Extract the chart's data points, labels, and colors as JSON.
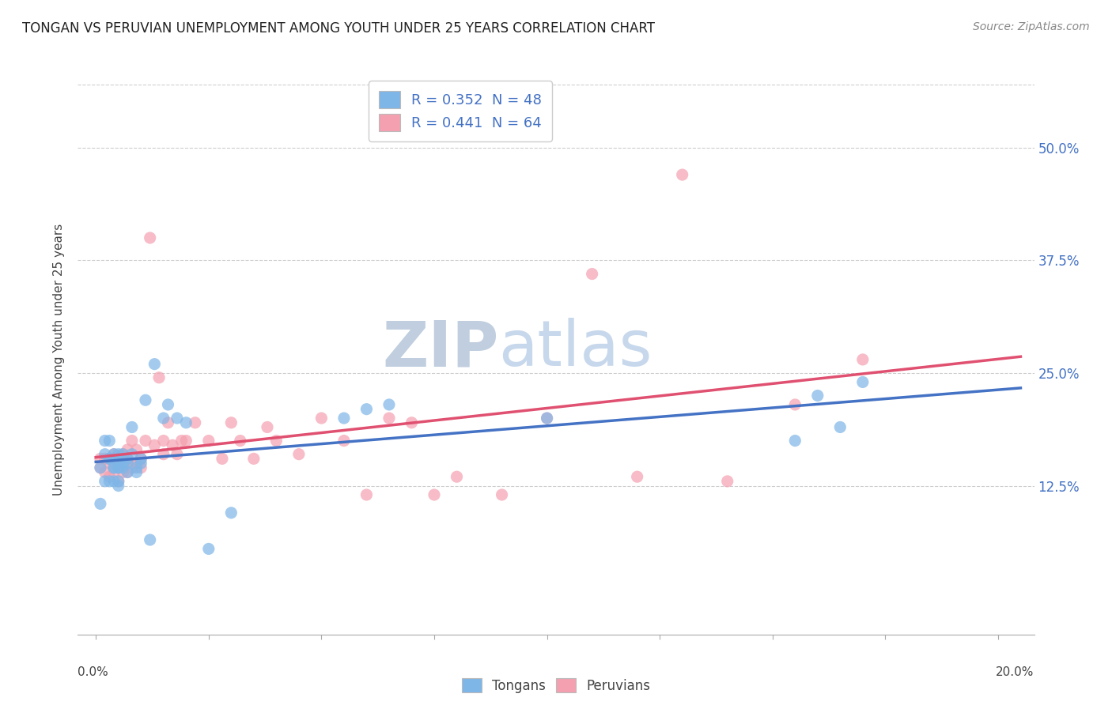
{
  "title": "TONGAN VS PERUVIAN UNEMPLOYMENT AMONG YOUTH UNDER 25 YEARS CORRELATION CHART",
  "source": "Source: ZipAtlas.com",
  "ylabel": "Unemployment Among Youth under 25 years",
  "xlabel_ticks": [
    "0.0%",
    "",
    "",
    "",
    "",
    "",
    "",
    "",
    "",
    "20.0%"
  ],
  "xlabel_vals": [
    0.0,
    0.025,
    0.05,
    0.075,
    0.1,
    0.125,
    0.15,
    0.175,
    0.19,
    0.2
  ],
  "ylabel_ticks": [
    "12.5%",
    "25.0%",
    "37.5%",
    "50.0%"
  ],
  "ylabel_vals": [
    0.125,
    0.25,
    0.375,
    0.5
  ],
  "ylim": [
    -0.04,
    0.57
  ],
  "xlim": [
    -0.004,
    0.208
  ],
  "R_tongan": 0.352,
  "N_tongan": 48,
  "R_peruvian": 0.441,
  "N_peruvian": 64,
  "tongan_color": "#7EB6E8",
  "peruvian_color": "#F4A0B0",
  "tongan_line_color": "#4472C4",
  "peruvian_line_color": "#E05070",
  "bg_color": "#FFFFFF",
  "watermark_zip": "ZIP",
  "watermark_atlas": "atlas",
  "watermark_color": "#C8D8EC",
  "tongan_x": [
    0.001,
    0.001,
    0.002,
    0.002,
    0.002,
    0.003,
    0.003,
    0.003,
    0.003,
    0.004,
    0.004,
    0.004,
    0.004,
    0.005,
    0.005,
    0.005,
    0.005,
    0.005,
    0.005,
    0.006,
    0.006,
    0.006,
    0.007,
    0.007,
    0.007,
    0.008,
    0.008,
    0.009,
    0.009,
    0.01,
    0.01,
    0.011,
    0.012,
    0.013,
    0.015,
    0.016,
    0.018,
    0.02,
    0.025,
    0.03,
    0.055,
    0.06,
    0.065,
    0.1,
    0.155,
    0.16,
    0.165,
    0.17
  ],
  "tongan_y": [
    0.145,
    0.105,
    0.16,
    0.13,
    0.175,
    0.155,
    0.175,
    0.13,
    0.155,
    0.145,
    0.16,
    0.13,
    0.145,
    0.155,
    0.125,
    0.16,
    0.145,
    0.13,
    0.145,
    0.15,
    0.145,
    0.16,
    0.15,
    0.14,
    0.155,
    0.19,
    0.16,
    0.14,
    0.145,
    0.15,
    0.155,
    0.22,
    0.065,
    0.26,
    0.2,
    0.215,
    0.2,
    0.195,
    0.055,
    0.095,
    0.2,
    0.21,
    0.215,
    0.2,
    0.175,
    0.225,
    0.19,
    0.24
  ],
  "peruvian_x": [
    0.001,
    0.001,
    0.002,
    0.002,
    0.003,
    0.003,
    0.003,
    0.004,
    0.004,
    0.004,
    0.004,
    0.005,
    0.005,
    0.005,
    0.005,
    0.006,
    0.006,
    0.006,
    0.006,
    0.007,
    0.007,
    0.007,
    0.008,
    0.008,
    0.008,
    0.009,
    0.009,
    0.01,
    0.01,
    0.011,
    0.012,
    0.013,
    0.014,
    0.015,
    0.015,
    0.016,
    0.017,
    0.018,
    0.019,
    0.02,
    0.022,
    0.025,
    0.028,
    0.03,
    0.032,
    0.035,
    0.038,
    0.04,
    0.045,
    0.05,
    0.055,
    0.06,
    0.065,
    0.07,
    0.075,
    0.08,
    0.09,
    0.1,
    0.11,
    0.12,
    0.13,
    0.14,
    0.155,
    0.17
  ],
  "peruvian_y": [
    0.145,
    0.155,
    0.14,
    0.155,
    0.15,
    0.135,
    0.155,
    0.15,
    0.16,
    0.14,
    0.155,
    0.15,
    0.13,
    0.155,
    0.145,
    0.15,
    0.14,
    0.16,
    0.145,
    0.14,
    0.155,
    0.165,
    0.15,
    0.175,
    0.145,
    0.15,
    0.165,
    0.155,
    0.145,
    0.175,
    0.4,
    0.17,
    0.245,
    0.175,
    0.16,
    0.195,
    0.17,
    0.16,
    0.175,
    0.175,
    0.195,
    0.175,
    0.155,
    0.195,
    0.175,
    0.155,
    0.19,
    0.175,
    0.16,
    0.2,
    0.175,
    0.115,
    0.2,
    0.195,
    0.115,
    0.135,
    0.115,
    0.2,
    0.36,
    0.135,
    0.47,
    0.13,
    0.215,
    0.265
  ]
}
